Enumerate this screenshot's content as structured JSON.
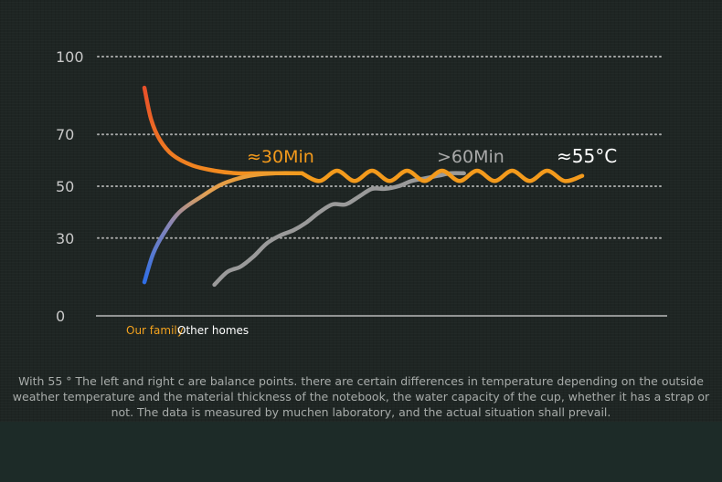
{
  "chart_data": {
    "type": "line",
    "ylim": [
      0,
      100
    ],
    "xlim": [
      0,
      100
    ],
    "yticks": [
      100,
      70,
      50,
      30,
      0
    ],
    "grid": true,
    "legend": [
      "Our family",
      "Other homes"
    ],
    "legend_position": "bottom-left",
    "series": [
      {
        "name": "Our family",
        "color": "#f39a1c",
        "segments": [
          {
            "x": [
              0,
              1.5,
              3.5,
              6.5,
              11,
              16,
              21,
              26,
              31,
              36
            ],
            "y": [
              88,
              76,
              68,
              62,
              58,
              56,
              55,
              55,
              55,
              55
            ]
          },
          {
            "x": [
              0,
              2,
              4.5,
              8,
              13,
              18,
              24,
              30,
              36
            ],
            "y": [
              13,
              24,
              32,
              40,
              46,
              51,
              54,
              55,
              55
            ]
          },
          {
            "x": [
              36,
              40,
              44,
              48,
              52,
              56,
              60,
              64,
              68,
              72,
              76,
              80,
              84,
              88,
              92,
              96,
              100
            ],
            "y": [
              55,
              52,
              56,
              52,
              56,
              52,
              56,
              52,
              56,
              52,
              56,
              52,
              56,
              52,
              56,
              52,
              54
            ]
          }
        ]
      },
      {
        "name": "Other homes",
        "color": "#9a9a9a",
        "x": [
          16,
          19,
          22,
          25,
          28,
          31,
          34,
          37,
          40,
          43,
          46,
          49,
          52,
          55,
          58,
          61,
          64,
          67,
          70,
          73
        ],
        "y": [
          12,
          17,
          19,
          23,
          28,
          31,
          33,
          36,
          40,
          43,
          43,
          46,
          49,
          49,
          50,
          52,
          53,
          54,
          55,
          55
        ]
      }
    ],
    "annotations": [
      "≈30Min",
      ">60Min",
      "≈55°C"
    ]
  },
  "note": "With 55 ° The left and right c are balance points. there are certain differences in temperature depending on the outside weather temperature and the material thickness of the notebook, the water capacity of the cup, whether it has a strap or not. The data is measured by muchen laboratory, and the actual situation shall prevail."
}
